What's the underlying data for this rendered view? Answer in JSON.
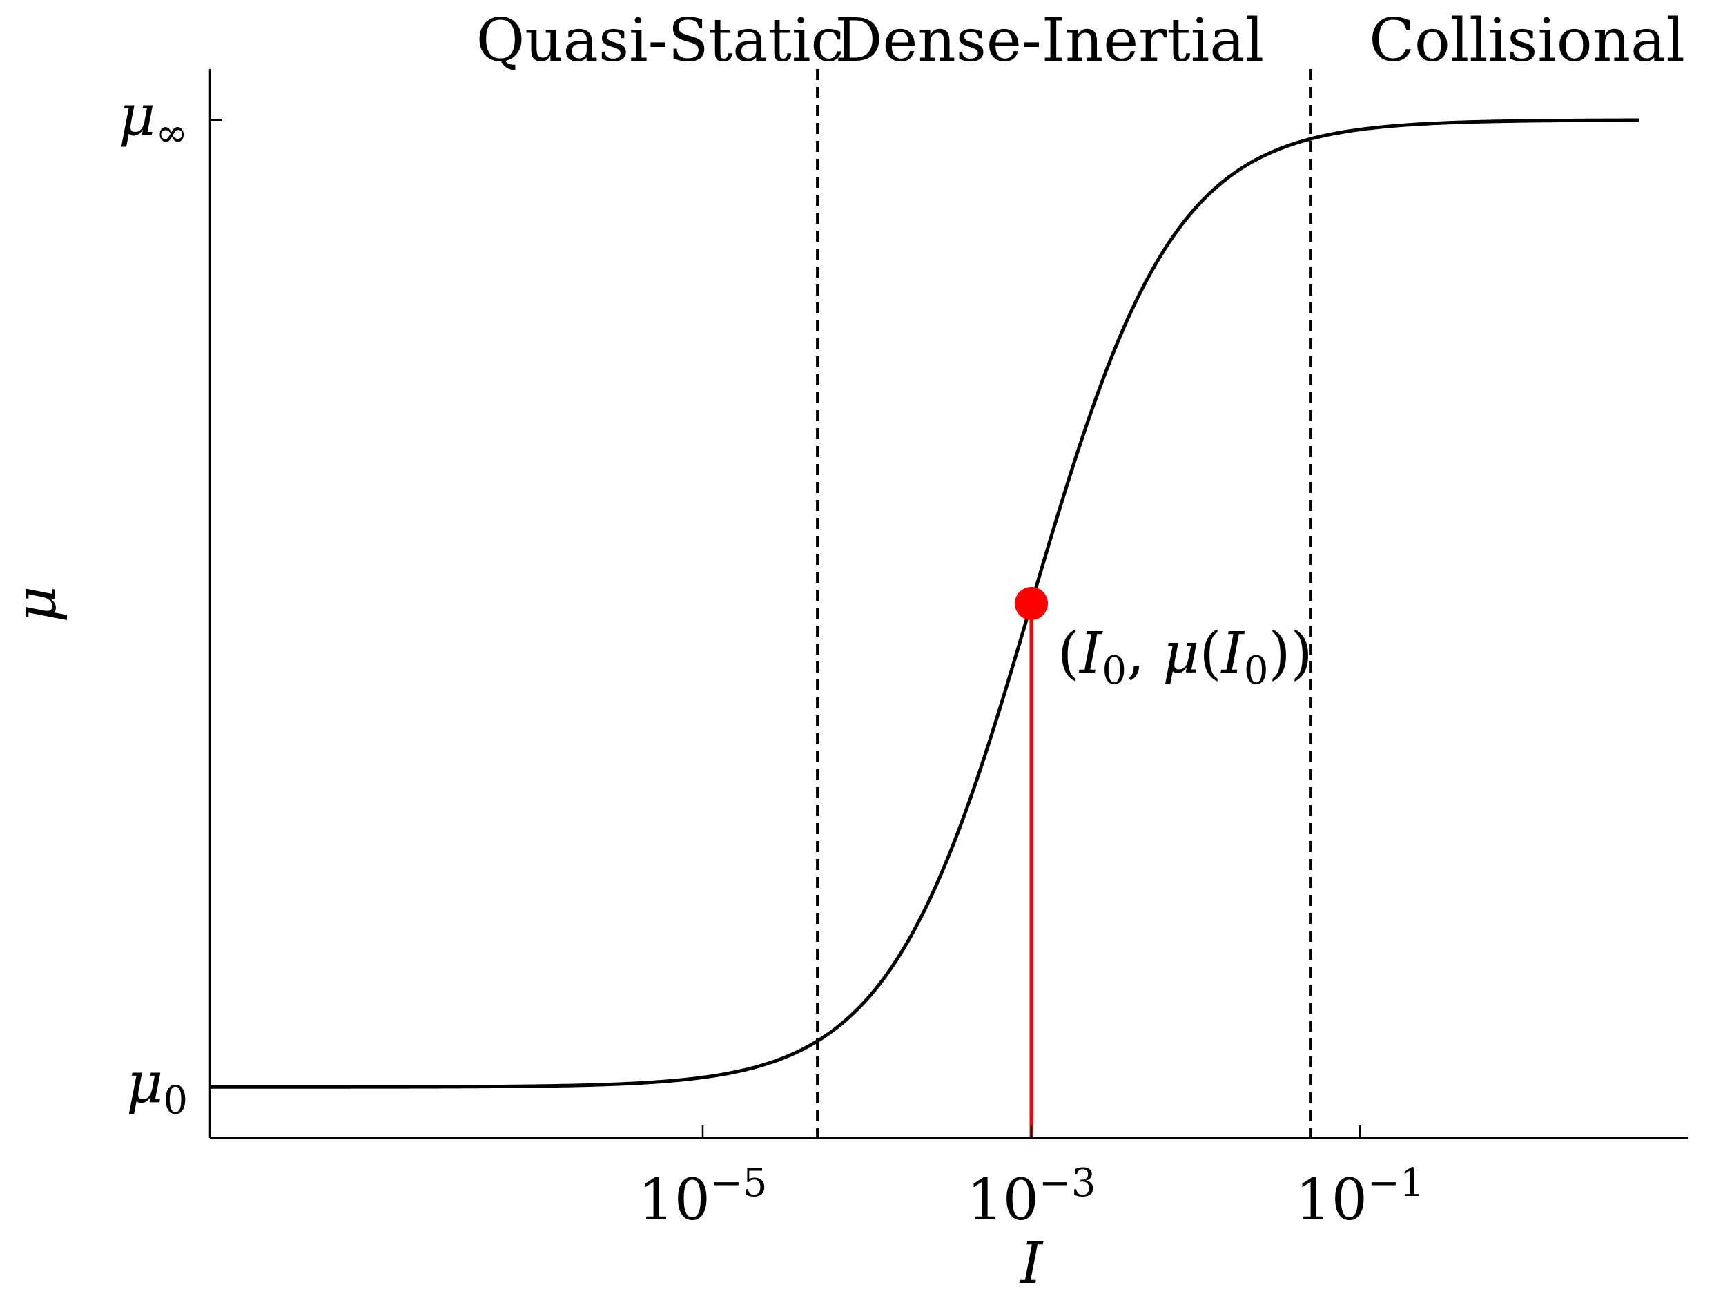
{
  "chart_data": {
    "type": "line",
    "x_scale": "log",
    "xlim": [
      1e-08,
      10
    ],
    "ylim": [
      0.3,
      2.4
    ],
    "xlabel": "I",
    "ylabel": "μ",
    "xticks": [
      {
        "value": 1e-05,
        "base": "10",
        "exp": "−5"
      },
      {
        "value": 0.001,
        "base": "10",
        "exp": "−3"
      },
      {
        "value": 0.1,
        "base": "10",
        "exp": "−1"
      }
    ],
    "yticks": [
      {
        "value": 0.4,
        "base": "μ",
        "sub": "0"
      },
      {
        "value": 2.3,
        "base": "μ",
        "sub": "∞"
      }
    ],
    "regions": [
      {
        "label": "Quasi-Static",
        "x_center": 5.5e-06
      },
      {
        "label": "Dense-Inertial",
        "x_center": 0.00129
      },
      {
        "label": "Collisional",
        "x_center": 1.04
      }
    ],
    "vlines": [
      {
        "x": 5e-05,
        "style": "dashed",
        "color": "#000000"
      },
      {
        "x": 0.05,
        "style": "dashed",
        "color": "#000000"
      }
    ],
    "series": [
      {
        "kind": "curve",
        "formula": "mu0 + (muinf - mu0) / (1 + I0 / I)",
        "mu0": 0.4,
        "muinf": 2.3,
        "I0": 0.001,
        "x_range": [
          1e-08,
          5
        ],
        "color": "#000000"
      }
    ],
    "highlight": {
      "x": 0.001,
      "y": 1.35,
      "label_parts": [
        "(",
        "I",
        "0",
        ", ",
        "μ",
        "(",
        "I",
        "0",
        "))"
      ],
      "color": "#ff0000"
    },
    "grid": false,
    "legend": "none"
  }
}
